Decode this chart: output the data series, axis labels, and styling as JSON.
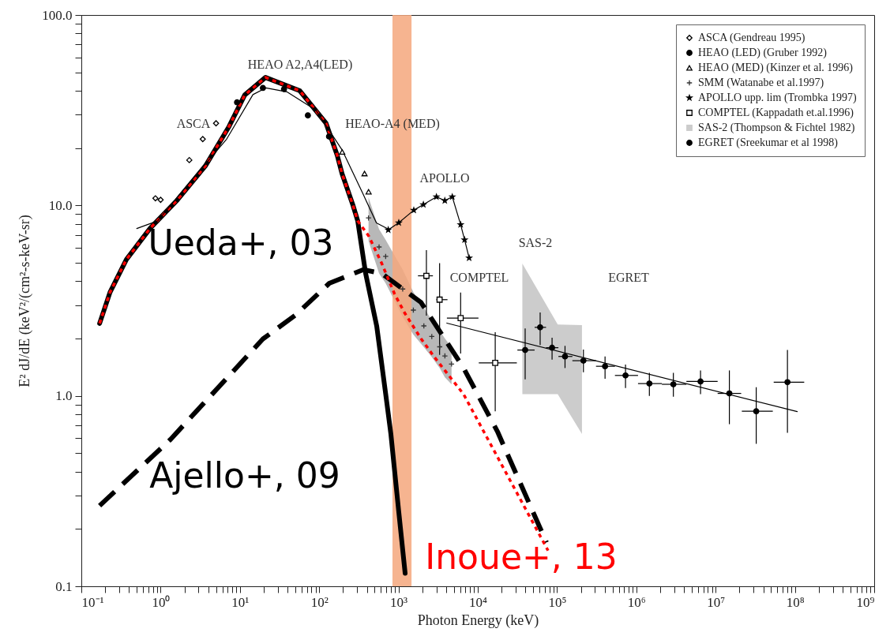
{
  "chart_data": {
    "type": "scatter",
    "xlabel": "Photon Energy (keV)",
    "ylabel": "E² dJ/dE (keV²/(cm²-s-keV-sr)",
    "log": "xy",
    "xlim": [
      0.1,
      1000000000
    ],
    "ylim": [
      0.1,
      100
    ],
    "xticks": [
      {
        "value": 0.1,
        "label": "10⁻¹"
      },
      {
        "value": 0.2,
        "label": null
      },
      {
        "value": 0.3,
        "label": null
      },
      {
        "value": 0.4,
        "label": null
      },
      {
        "value": 0.5,
        "label": null
      },
      {
        "value": 0.6,
        "label": null
      },
      {
        "value": 0.7,
        "label": null
      },
      {
        "value": 0.8,
        "label": null
      },
      {
        "value": 0.9,
        "label": null
      },
      {
        "value": 1,
        "label": "10⁰"
      },
      {
        "value": 2,
        "label": null
      },
      {
        "value": 3,
        "label": null
      },
      {
        "value": 4,
        "label": null
      },
      {
        "value": 5,
        "label": null
      },
      {
        "value": 6,
        "label": null
      },
      {
        "value": 7,
        "label": null
      },
      {
        "value": 8,
        "label": null
      },
      {
        "value": 9,
        "label": null
      },
      {
        "value": 10,
        "label": "10¹"
      },
      {
        "value": 20,
        "label": null
      },
      {
        "value": 30,
        "label": null
      },
      {
        "value": 40,
        "label": null
      },
      {
        "value": 50,
        "label": null
      },
      {
        "value": 60,
        "label": null
      },
      {
        "value": 70,
        "label": null
      },
      {
        "value": 80,
        "label": null
      },
      {
        "value": 90,
        "label": null
      },
      {
        "value": 100,
        "label": "10²"
      },
      {
        "value": 200,
        "label": null
      },
      {
        "value": 300,
        "label": null
      },
      {
        "value": 400,
        "label": null
      },
      {
        "value": 500,
        "label": null
      },
      {
        "value": 600,
        "label": null
      },
      {
        "value": 700,
        "label": null
      },
      {
        "value": 800,
        "label": null
      },
      {
        "value": 900,
        "label": null
      },
      {
        "value": 1000,
        "label": "10³"
      },
      {
        "value": 2000,
        "label": null
      },
      {
        "value": 3000,
        "label": null
      },
      {
        "value": 4000,
        "label": null
      },
      {
        "value": 5000,
        "label": null
      },
      {
        "value": 6000,
        "label": null
      },
      {
        "value": 7000,
        "label": null
      },
      {
        "value": 8000,
        "label": null
      },
      {
        "value": 9000,
        "label": null
      },
      {
        "value": 10000,
        "label": "10⁴"
      },
      {
        "value": 20000,
        "label": null
      },
      {
        "value": 30000,
        "label": null
      },
      {
        "value": 40000,
        "label": null
      },
      {
        "value": 50000,
        "label": null
      },
      {
        "value": 60000,
        "label": null
      },
      {
        "value": 70000,
        "label": null
      },
      {
        "value": 80000,
        "label": null
      },
      {
        "value": 90000,
        "label": null
      },
      {
        "value": 100000,
        "label": "10⁵"
      },
      {
        "value": 200000,
        "label": null
      },
      {
        "value": 300000,
        "label": null
      },
      {
        "value": 400000,
        "label": null
      },
      {
        "value": 500000,
        "label": null
      },
      {
        "value": 600000,
        "label": null
      },
      {
        "value": 700000,
        "label": null
      },
      {
        "value": 800000,
        "label": null
      },
      {
        "value": 900000,
        "label": null
      },
      {
        "value": 1000000,
        "label": "10⁶"
      },
      {
        "value": 2000000,
        "label": null
      },
      {
        "value": 3000000,
        "label": null
      },
      {
        "value": 4000000,
        "label": null
      },
      {
        "value": 5000000,
        "label": null
      },
      {
        "value": 6000000,
        "label": null
      },
      {
        "value": 7000000,
        "label": null
      },
      {
        "value": 8000000,
        "label": null
      },
      {
        "value": 9000000,
        "label": null
      },
      {
        "value": 10000000,
        "label": "10⁷"
      },
      {
        "value": 20000000,
        "label": null
      },
      {
        "value": 30000000,
        "label": null
      },
      {
        "value": 40000000,
        "label": null
      },
      {
        "value": 50000000,
        "label": null
      },
      {
        "value": 60000000,
        "label": null
      },
      {
        "value": 70000000,
        "label": null
      },
      {
        "value": 80000000,
        "label": null
      },
      {
        "value": 90000000,
        "label": null
      },
      {
        "value": 100000000,
        "label": "10⁸"
      },
      {
        "value": 200000000,
        "label": null
      },
      {
        "value": 300000000,
        "label": null
      },
      {
        "value": 400000000,
        "label": null
      },
      {
        "value": 500000000,
        "label": null
      },
      {
        "value": 600000000,
        "label": null
      },
      {
        "value": 700000000,
        "label": null
      },
      {
        "value": 800000000,
        "label": null
      },
      {
        "value": 900000000,
        "label": null
      },
      {
        "value": 1000000000,
        "label": "10⁹"
      }
    ],
    "yticks": [
      {
        "value": 0.1,
        "label": "0.1"
      },
      {
        "value": 0.2,
        "label": null
      },
      {
        "value": 0.3,
        "label": null
      },
      {
        "value": 0.4,
        "label": null
      },
      {
        "value": 0.5,
        "label": null
      },
      {
        "value": 0.6,
        "label": null
      },
      {
        "value": 0.7,
        "label": null
      },
      {
        "value": 0.8,
        "label": null
      },
      {
        "value": 0.9,
        "label": null
      },
      {
        "value": 1,
        "label": "1.0"
      },
      {
        "value": 2,
        "label": null
      },
      {
        "value": 3,
        "label": null
      },
      {
        "value": 4,
        "label": null
      },
      {
        "value": 5,
        "label": null
      },
      {
        "value": 6,
        "label": null
      },
      {
        "value": 7,
        "label": null
      },
      {
        "value": 8,
        "label": null
      },
      {
        "value": 9,
        "label": null
      },
      {
        "value": 10,
        "label": "10.0"
      },
      {
        "value": 20,
        "label": null
      },
      {
        "value": 30,
        "label": null
      },
      {
        "value": 40,
        "label": null
      },
      {
        "value": 50,
        "label": null
      },
      {
        "value": 60,
        "label": null
      },
      {
        "value": 70,
        "label": null
      },
      {
        "value": 80,
        "label": null
      },
      {
        "value": 90,
        "label": null
      },
      {
        "value": 100,
        "label": "100.0"
      }
    ],
    "legend": "top right",
    "bands": [
      {
        "axis": "x",
        "from": 840,
        "to": 1460,
        "color": "#f4a77c"
      }
    ],
    "annotations": [
      "HEAO A2,A4(LED)",
      "ASCA",
      "HEAO-A4 (MED)",
      "APOLLO",
      "COMPTEL",
      "SAS-2",
      "EGRET"
    ],
    "series": [
      {
        "type": "line",
        "color": "#000000",
        "line_style": "solid",
        "x": [
          0.5,
          0.92,
          1.36,
          2.9,
          6.8,
          14.6,
          21.2,
          39,
          90.6,
          194,
          360,
          527,
          775
        ],
        "values": [
          7.56,
          8.3,
          10.1,
          14.7,
          22.3,
          38.2,
          41.4,
          39.5,
          31.7,
          19.6,
          11.4,
          8.1,
          7.44
        ]
      },
      {
        "type": "line",
        "color": "#000000",
        "line_style": "solid",
        "x": [
          4070,
          107000000
        ],
        "values": [
          2.41,
          0.826
        ]
      },
      {
        "type": "line",
        "name": "Ajello+, 09",
        "color": "#000000",
        "line_style": "dashed",
        "x": [
          0.17,
          1.33,
          19.5,
          50,
          134,
          360,
          610,
          1920,
          6620,
          17700,
          73500
        ],
        "values": [
          0.265,
          0.59,
          1.99,
          2.65,
          3.9,
          4.6,
          4.4,
          3.1,
          1.4,
          0.65,
          0.17
        ]
      },
      {
        "type": "line",
        "name": "Ueda+, 03",
        "color": "#000000",
        "line_style": "solid",
        "x": [
          0.17,
          0.23,
          0.37,
          0.74,
          1.6,
          3.7,
          7.3,
          11.5,
          21,
          57,
          122,
          169,
          194,
          267,
          306,
          385,
          531,
          684,
          802,
          1010,
          1213
        ],
        "values": [
          2.4,
          3.5,
          5.2,
          7.6,
          10.6,
          16.2,
          26,
          38,
          47,
          40,
          27,
          18.3,
          14.7,
          10,
          8.3,
          4.4,
          2.33,
          1.05,
          0.63,
          0.244,
          0.117
        ]
      },
      {
        "type": "line",
        "name": "Inoue+, 13",
        "color": "#ff0000",
        "line_style": "dotted",
        "x": [
          0.17,
          0.23,
          0.37,
          0.74,
          1.6,
          3.7,
          7.3,
          11.5,
          21,
          57,
          122,
          169,
          194,
          267,
          306,
          422,
          610,
          900,
          1213,
          1920,
          2830,
          6620,
          77000
        ],
        "values": [
          2.4,
          3.5,
          5.2,
          7.6,
          10.6,
          16.2,
          26,
          38,
          47,
          40,
          27,
          18.3,
          14.7,
          10,
          8.3,
          6.9,
          5.0,
          3.4,
          2.7,
          2.0,
          1.6,
          1.02,
          0.154
        ]
      },
      {
        "name": "ASCA (Gendreau 1995)",
        "color": "#000000",
        "marker": "diamond",
        "x": [
          0.86,
          1.0,
          2.3,
          3.4,
          5.0
        ],
        "values": [
          10.9,
          10.7,
          17.3,
          22.3,
          27
        ]
      },
      {
        "name": "HEAO (LED) (Gruber 1992)",
        "color": "#000000",
        "marker": "circle",
        "x": [
          9.2,
          19.5,
          36,
          72,
          133
        ],
        "values": [
          34.8,
          41.4,
          40.8,
          29.7,
          23
        ]
      },
      {
        "name": "HEAO (MED) (Kinzer et al. 1996)",
        "color": "#000000",
        "marker": "triangle",
        "x": [
          195,
          373,
          420
        ],
        "values": [
          19.1,
          14.7,
          11.8
        ]
      },
      {
        "name": "SMM (Watanabe et al.1997)",
        "color": "#333333",
        "marker": "cross",
        "x": [
          419,
          569,
          689,
          1130,
          1540,
          2090,
          2630,
          3310,
          3850,
          4670
        ],
        "values": [
          8.6,
          6.05,
          5.4,
          3.64,
          2.82,
          2.33,
          2.05,
          1.81,
          1.62,
          1.47
        ],
        "lower": [
          6.5,
          4.4,
          3.9,
          2.6,
          2.1,
          1.8,
          1.6,
          1.4,
          1.25,
          1.15
        ],
        "upper": [
          11,
          7.5,
          6.6,
          4.6,
          3.5,
          2.9,
          2.5,
          2.2,
          2.0,
          1.8
        ]
      },
      {
        "type": "line",
        "name": "APOLLO upp. lim (Trombka 1997)",
        "color": "#000000",
        "marker": "star",
        "line_style": "solid",
        "x": [
          743,
          1009,
          1560,
          2060,
          3010,
          3840,
          4770,
          6080,
          6820,
          7780
        ],
        "values": [
          7.44,
          8.11,
          9.44,
          10.1,
          11.1,
          10.6,
          11.1,
          7.93,
          6.6,
          5.3
        ]
      },
      {
        "name": "COMPTEL (Kappadath et.al.1996)",
        "color": "#000000",
        "marker": "square",
        "x": [
          2250,
          3300,
          6080,
          16600
        ],
        "values": [
          4.27,
          3.2,
          2.56,
          1.49
        ],
        "errors": [
          [
            2.64,
            5.83
          ],
          [
            1.64,
            4.97
          ],
          [
            1.67,
            3.49
          ],
          [
            0.83,
            2.16
          ]
        ],
        "xerrors": [
          [
            1760,
            2720
          ],
          [
            3000,
            4150
          ],
          [
            4080,
            10200
          ],
          [
            10300,
            31100
          ]
        ]
      },
      {
        "type": "area",
        "name": "SAS-2 (Thompson & Fichtel 1982)",
        "color": "#cccccc",
        "x": [
          36500,
          102000,
          206000
        ],
        "values": [
          null,
          null,
          null
        ],
        "lower": [
          1.02,
          1.02,
          0.63
        ],
        "upper": [
          4.95,
          2.37,
          2.35
        ]
      },
      {
        "name": "EGRET (Sreekumar et al 1998)",
        "color": "#000000",
        "marker": "circle",
        "x": [
          39600,
          61200,
          86500,
          126000,
          215000,
          403000,
          730000,
          1460000,
          2930000,
          6450000,
          14900000,
          32500000,
          80500000
        ],
        "values": [
          1.74,
          2.29,
          1.79,
          1.61,
          1.53,
          1.43,
          1.28,
          1.16,
          1.15,
          1.19,
          1.03,
          0.83,
          1.18
        ],
        "errors": [
          [
            1.22,
            2.26
          ],
          [
            1.85,
            2.74
          ],
          [
            1.55,
            2.02
          ],
          [
            1.4,
            1.83
          ],
          [
            1.33,
            1.75
          ],
          [
            1.23,
            1.61
          ],
          [
            1.1,
            1.46
          ],
          [
            1.0,
            1.32
          ],
          [
            0.99,
            1.32
          ],
          [
            1.02,
            1.36
          ],
          [
            0.71,
            1.36
          ],
          [
            0.56,
            1.11
          ],
          [
            0.64,
            1.74
          ]
        ],
        "xerrors": [
          [
            31600,
            52100
          ],
          [
            52100,
            72600
          ],
          [
            72600,
            104000
          ],
          [
            104000,
            156000
          ],
          [
            156000,
            310000
          ],
          [
            310000,
            537000
          ],
          [
            537000,
            1050000
          ],
          [
            1050000,
            2100000
          ],
          [
            2100000,
            4280000
          ],
          [
            4280000,
            10600000
          ],
          [
            10600000,
            21000000
          ],
          [
            21400000,
            52600000
          ],
          [
            54000000,
            131000000
          ]
        ]
      }
    ]
  }
}
